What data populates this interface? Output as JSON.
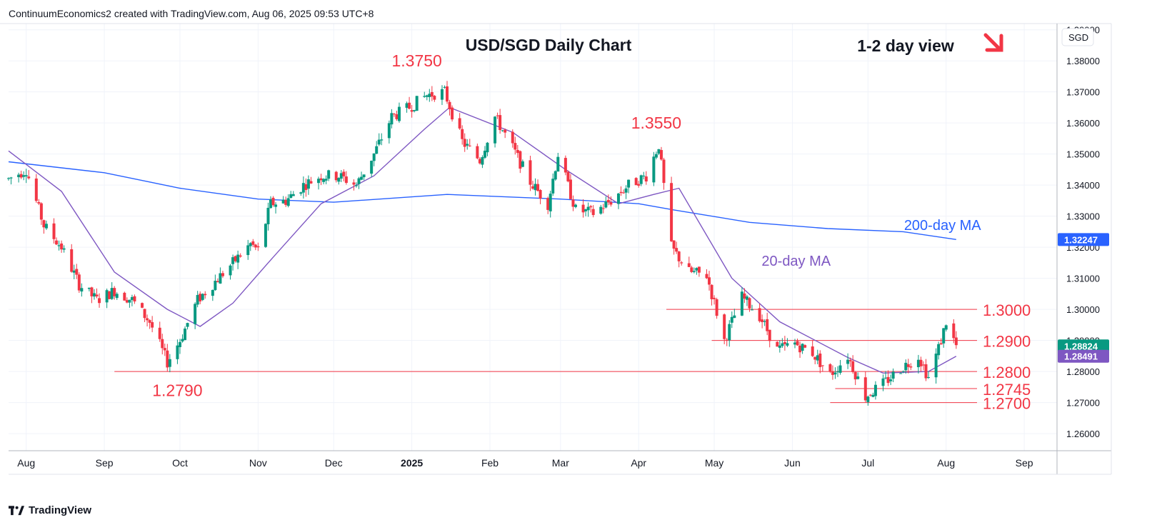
{
  "header": {
    "caption": "ContinuumEconomics2 created with TradingView.com, Aug 06, 2025 09:53 UTC+8"
  },
  "footer": {
    "brand": "TradingView"
  },
  "colors": {
    "up": "#089981",
    "down": "#f23645",
    "ma20": "#7e57c2",
    "ma200": "#2962ff",
    "level_text": "#f23645",
    "last_price_bg": "#089981",
    "ma200_tag_bg": "#2962ff"
  },
  "chart_data": {
    "type": "candlestick",
    "title": "USD/SGD Daily Chart",
    "view_label": "1-2 day view",
    "view_direction": "down-right",
    "currency_label": "SGD",
    "x_ticks": [
      "Aug",
      "Sep",
      "Oct",
      "Nov",
      "Dec",
      "2025",
      "Feb",
      "Mar",
      "Apr",
      "May",
      "Jun",
      "Jul",
      "Aug",
      "Sep"
    ],
    "y_ticks": [
      "1.26000",
      "1.27000",
      "1.28000",
      "1.29000",
      "1.30000",
      "1.31000",
      "1.32000",
      "1.33000",
      "1.34000",
      "1.35000",
      "1.36000",
      "1.37000",
      "1.38000",
      "1.39000"
    ],
    "ylim": [
      1.2545,
      1.392
    ],
    "grid": true,
    "price_tags": [
      {
        "text": "1.32247",
        "value": 1.32247,
        "color": "#2962ff"
      },
      {
        "text": "1.28824",
        "value": 1.28824,
        "color": "#089981"
      },
      {
        "text": "1.28491",
        "value": 1.28491,
        "color": "#7e57c2"
      }
    ],
    "annotations": [
      {
        "text": "1.3750",
        "date": "2025-01-03",
        "value": 1.375
      },
      {
        "text": "1.3550",
        "date": "2025-04-08",
        "value": 1.355
      },
      {
        "text": "1.2790",
        "date": "2024-09-30",
        "value": 1.279
      },
      {
        "text": "200-day MA",
        "date": "2025-07-15",
        "value": 1.326
      },
      {
        "text": "20-day MA",
        "date": "2025-05-25",
        "value": 1.315
      }
    ],
    "levels": [
      {
        "label": "1.3000",
        "value": 1.3,
        "from": "2025-04-12"
      },
      {
        "label": "1.2900",
        "value": 1.29,
        "from": "2025-04-30"
      },
      {
        "label": "1.2800",
        "value": 1.28,
        "from": "2024-09-05"
      },
      {
        "label": "1.2745",
        "value": 1.2745,
        "from": "2025-06-18"
      },
      {
        "label": "1.2700",
        "value": 1.27,
        "from": "2025-06-16"
      }
    ],
    "close_anchors": [
      [
        "2024-07-25",
        1.342
      ],
      [
        "2024-08-01",
        1.345
      ],
      [
        "2024-08-08",
        1.327
      ],
      [
        "2024-08-15",
        1.32
      ],
      [
        "2024-08-22",
        1.308
      ],
      [
        "2024-08-29",
        1.303
      ],
      [
        "2024-09-05",
        1.306
      ],
      [
        "2024-09-12",
        1.303
      ],
      [
        "2024-09-19",
        1.296
      ],
      [
        "2024-09-26",
        1.283
      ],
      [
        "2024-10-01",
        1.29
      ],
      [
        "2024-10-08",
        1.303
      ],
      [
        "2024-10-15",
        1.309
      ],
      [
        "2024-10-22",
        1.315
      ],
      [
        "2024-10-29",
        1.321
      ],
      [
        "2024-11-01",
        1.319
      ],
      [
        "2024-11-06",
        1.334
      ],
      [
        "2024-11-12",
        1.335
      ],
      [
        "2024-11-19",
        1.34
      ],
      [
        "2024-11-26",
        1.343
      ],
      [
        "2024-12-03",
        1.343
      ],
      [
        "2024-12-10",
        1.34
      ],
      [
        "2024-12-17",
        1.35
      ],
      [
        "2024-12-24",
        1.362
      ],
      [
        "2024-12-31",
        1.365
      ],
      [
        "2025-01-07",
        1.369
      ],
      [
        "2025-01-14",
        1.37
      ],
      [
        "2025-01-21",
        1.354
      ],
      [
        "2025-01-28",
        1.348
      ],
      [
        "2025-02-03",
        1.362
      ],
      [
        "2025-02-10",
        1.352
      ],
      [
        "2025-02-17",
        1.341
      ],
      [
        "2025-02-24",
        1.334
      ],
      [
        "2025-02-28",
        1.35
      ],
      [
        "2025-03-07",
        1.332
      ],
      [
        "2025-03-14",
        1.331
      ],
      [
        "2025-03-21",
        1.335
      ],
      [
        "2025-03-28",
        1.34
      ],
      [
        "2025-04-04",
        1.343
      ],
      [
        "2025-04-09",
        1.353
      ],
      [
        "2025-04-14",
        1.32
      ],
      [
        "2025-04-21",
        1.312
      ],
      [
        "2025-04-28",
        1.311
      ],
      [
        "2025-05-05",
        1.29
      ],
      [
        "2025-05-12",
        1.304
      ],
      [
        "2025-05-19",
        1.298
      ],
      [
        "2025-05-26",
        1.287
      ],
      [
        "2025-06-02",
        1.289
      ],
      [
        "2025-06-09",
        1.286
      ],
      [
        "2025-06-16",
        1.279
      ],
      [
        "2025-06-23",
        1.285
      ],
      [
        "2025-06-30",
        1.272
      ],
      [
        "2025-07-07",
        1.276
      ],
      [
        "2025-07-14",
        1.281
      ],
      [
        "2025-07-21",
        1.285
      ],
      [
        "2025-07-25",
        1.278
      ],
      [
        "2025-07-30",
        1.29
      ],
      [
        "2025-08-01",
        1.296
      ],
      [
        "2025-08-05",
        1.2882
      ]
    ],
    "ma20_anchors": [
      [
        "2024-07-25",
        1.351
      ],
      [
        "2024-08-15",
        1.338
      ],
      [
        "2024-09-05",
        1.312
      ],
      [
        "2024-09-26",
        1.3
      ],
      [
        "2024-10-09",
        1.2945
      ],
      [
        "2024-10-22",
        1.302
      ],
      [
        "2024-11-05",
        1.315
      ],
      [
        "2024-11-26",
        1.334
      ],
      [
        "2024-12-17",
        1.343
      ],
      [
        "2025-01-06",
        1.358
      ],
      [
        "2025-01-16",
        1.365
      ],
      [
        "2025-02-10",
        1.357
      ],
      [
        "2025-03-03",
        1.345
      ],
      [
        "2025-03-24",
        1.334
      ],
      [
        "2025-04-07",
        1.337
      ],
      [
        "2025-04-17",
        1.339
      ],
      [
        "2025-05-08",
        1.31
      ],
      [
        "2025-05-27",
        1.296
      ],
      [
        "2025-06-23",
        1.2845
      ],
      [
        "2025-07-07",
        1.2795
      ],
      [
        "2025-07-25",
        1.28
      ],
      [
        "2025-08-05",
        1.2849
      ]
    ],
    "ma200_anchors": [
      [
        "2024-07-25",
        1.3475
      ],
      [
        "2024-09-01",
        1.344
      ],
      [
        "2024-10-01",
        1.339
      ],
      [
        "2024-11-01",
        1.3355
      ],
      [
        "2024-12-01",
        1.3345
      ],
      [
        "2025-01-15",
        1.337
      ],
      [
        "2025-03-01",
        1.3355
      ],
      [
        "2025-04-01",
        1.334
      ],
      [
        "2025-04-15",
        1.332
      ],
      [
        "2025-05-15",
        1.328
      ],
      [
        "2025-06-15",
        1.326
      ],
      [
        "2025-07-15",
        1.325
      ],
      [
        "2025-08-05",
        1.3225
      ]
    ]
  }
}
